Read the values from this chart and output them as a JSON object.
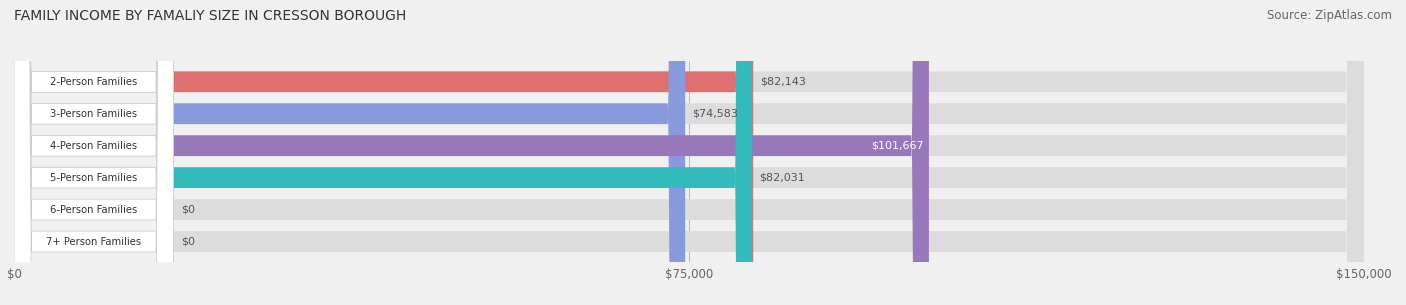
{
  "title": "FAMILY INCOME BY FAMALIY SIZE IN CRESSON BOROUGH",
  "source": "Source: ZipAtlas.com",
  "categories": [
    "2-Person Families",
    "3-Person Families",
    "4-Person Families",
    "5-Person Families",
    "6-Person Families",
    "7+ Person Families"
  ],
  "values": [
    82143,
    74583,
    101667,
    82031,
    0,
    0
  ],
  "bar_colors": [
    "#E07070",
    "#8899DD",
    "#9977BB",
    "#33BBBB",
    "#AABBEE",
    "#F0AAAA"
  ],
  "value_labels": [
    "$82,143",
    "$74,583",
    "$101,667",
    "$82,031",
    "$0",
    "$0"
  ],
  "label_inside": [
    false,
    false,
    true,
    false,
    false,
    false
  ],
  "xlim": [
    0,
    150000
  ],
  "xtick_values": [
    0,
    75000,
    150000
  ],
  "xtick_labels": [
    "$0",
    "$75,000",
    "$150,000"
  ],
  "title_fontsize": 10,
  "source_fontsize": 8.5,
  "background_color": "#f0f0f0",
  "bar_bg_color": "#dcdcdc",
  "bar_height": 0.65
}
